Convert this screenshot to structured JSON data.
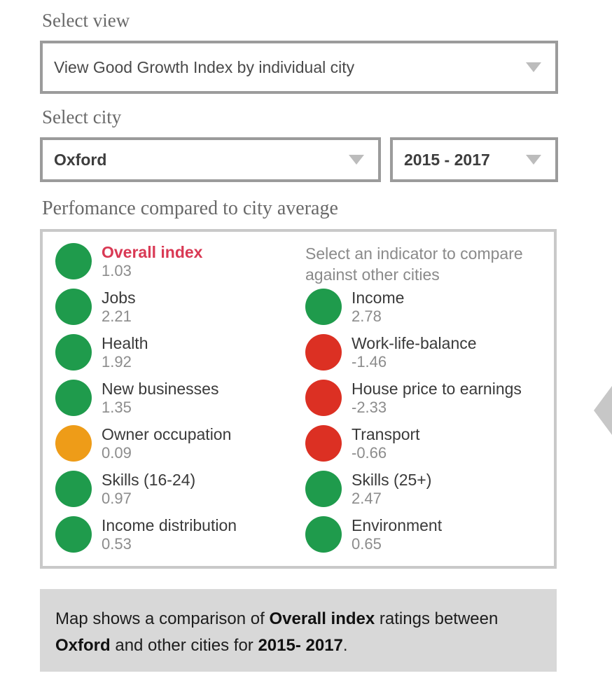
{
  "colors": {
    "green": "#1f9b4c",
    "red": "#dc3023",
    "amber": "#ee9c18",
    "rose": "#d93954",
    "border_dark": "#9b9b9b",
    "border_light": "#c9c9c9",
    "note_bg": "#d8d8d8",
    "caret_gray": "#bcbcbc",
    "edge_arrow_gray": "#c7c7c7"
  },
  "icons": {
    "dropdown_caret": "triangle-down",
    "edge_arrow": "chevron-left"
  },
  "select_view": {
    "label": "Select view",
    "value": "View Good Growth Index by individual city"
  },
  "select_city": {
    "label": "Select city",
    "city": "Oxford",
    "period": "2015 - 2017"
  },
  "performance": {
    "heading": "Perfomance compared to city average",
    "instruction": "Select an indicator to compare against other cities",
    "columns": {
      "left": [
        {
          "label": "Overall index",
          "value": "1.03",
          "color": "green",
          "highlight": true
        },
        {
          "label": "Jobs",
          "value": "2.21",
          "color": "green"
        },
        {
          "label": "Health",
          "value": "1.92",
          "color": "green"
        },
        {
          "label": "New businesses",
          "value": "1.35",
          "color": "green"
        },
        {
          "label": "Owner occupation",
          "value": "0.09",
          "color": "amber"
        },
        {
          "label": "Skills (16-24)",
          "value": "0.97",
          "color": "green"
        },
        {
          "label": "Income distribution",
          "value": "0.53",
          "color": "green"
        }
      ],
      "right": [
        {
          "label": "Income",
          "value": "2.78",
          "color": "green"
        },
        {
          "label": "Work-life-balance",
          "value": "-1.46",
          "color": "red"
        },
        {
          "label": "House price to earnings",
          "value": "-2.33",
          "color": "red"
        },
        {
          "label": "Transport",
          "value": "-0.66",
          "color": "red"
        },
        {
          "label": "Skills (25+)",
          "value": "2.47",
          "color": "green"
        },
        {
          "label": "Environment",
          "value": "0.65",
          "color": "green"
        }
      ]
    }
  },
  "map_note": {
    "segments": [
      {
        "text": "Map shows a comparison of ",
        "bold": false
      },
      {
        "text": "Overall index",
        "bold": true
      },
      {
        "text": " ratings between ",
        "bold": false
      },
      {
        "text": "Oxford",
        "bold": true
      },
      {
        "text": " and other cities for ",
        "bold": false
      },
      {
        "text": "2015- 2017",
        "bold": true
      },
      {
        "text": ".",
        "bold": false
      }
    ]
  }
}
